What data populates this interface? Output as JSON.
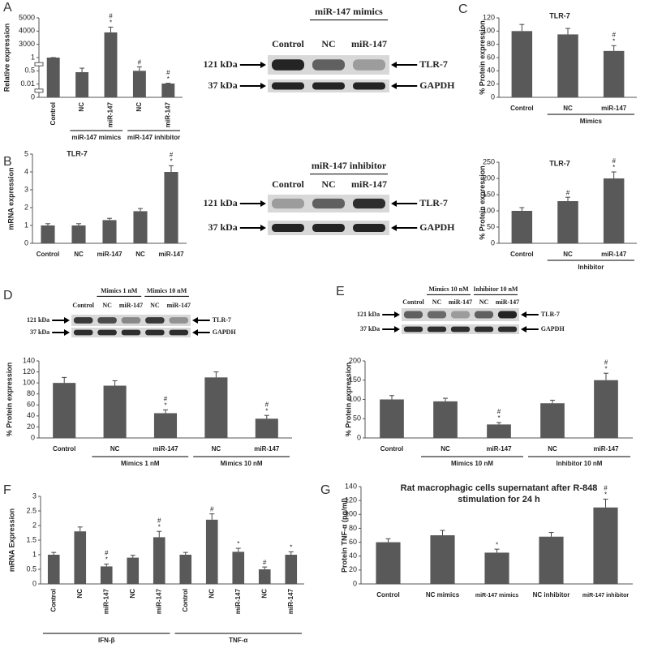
{
  "panels": [
    "A",
    "B",
    "C",
    "D",
    "E",
    "F",
    "G"
  ],
  "blots": [
    {
      "headers": [
        {
          "label": "miR-147 mimics",
          "first": 1,
          "count": 2
        }
      ],
      "lanes": [
        "Control",
        "NC",
        "miR-147"
      ],
      "bands": [
        {
          "size": "121 kDa",
          "protein": "TLR-7"
        },
        {
          "size": "37 kDa",
          "protein": "GAPDH"
        }
      ]
    },
    {
      "headers": [
        {
          "label": "miR-147 inhibitor",
          "first": 1,
          "count": 2
        }
      ],
      "lanes": [
        "Control",
        "NC",
        "miR-147"
      ],
      "bands": [
        {
          "size": "121 kDa",
          "protein": "TLR-7"
        },
        {
          "size": "37 kDa",
          "protein": "GAPDH"
        }
      ]
    },
    {
      "headers": [
        {
          "label": "Mimics 1 nM",
          "first": 1,
          "count": 2
        },
        {
          "label": "Mimics 10 nM",
          "first": 3,
          "count": 2
        }
      ],
      "lanes": [
        "Control",
        "NC",
        "miR-147",
        "NC",
        "miR-147"
      ],
      "bands": [
        {
          "size": "121 kDa",
          "protein": "TLR-7"
        },
        {
          "size": "37 kDa",
          "protein": "GAPDH"
        }
      ]
    },
    {
      "headers": [
        {
          "label": "Mimics 10 nM",
          "first": 1,
          "count": 2
        },
        {
          "label": "Inhibitor 10 nM",
          "first": 3,
          "count": 2
        }
      ],
      "lanes": [
        "Control",
        "NC",
        "miR-147",
        "NC",
        "miR-147"
      ],
      "bands": [
        {
          "size": "121 kDa",
          "protein": "TLR-7"
        },
        {
          "size": "37 kDa",
          "protein": "GAPDH"
        }
      ]
    }
  ],
  "chart_data": [
    {
      "type": "bar",
      "y_label": "Relative expression",
      "scale": "piecewise",
      "color": "#595959",
      "categories": [
        "Control",
        "NC",
        "miR-147",
        "NC",
        "miR-147"
      ],
      "values": [
        1,
        0.45,
        3900,
        0.5,
        0.03
      ],
      "errors": [
        0.3,
        0.15,
        400,
        0.15,
        0.01
      ],
      "annotations": [
        [],
        [],
        [
          "#",
          "*"
        ],
        [
          "#"
        ],
        [
          "#",
          "*"
        ]
      ],
      "groups": [
        {
          "label": "miR-147 mimics",
          "first": 1,
          "count": 2
        },
        {
          "label": "miR-147 inhibitor",
          "first": 3,
          "count": 2
        }
      ],
      "ylim": [
        0,
        5000
      ],
      "yticks": [
        0,
        0.01,
        0.5,
        1,
        3000,
        4000,
        5000
      ]
    },
    {
      "type": "bar",
      "title": "TLR-7",
      "y_label": "% Protein expression",
      "color": "#595959",
      "categories": [
        "Control",
        "NC",
        "miR-147"
      ],
      "values": [
        100,
        95,
        70
      ],
      "errors": [
        10,
        9,
        8
      ],
      "annotations": [
        [],
        [],
        [
          "#",
          "*"
        ]
      ],
      "groups": [
        {
          "label": "Mimics",
          "first": 1,
          "count": 2
        }
      ],
      "ylim": [
        0,
        120
      ],
      "yticks": [
        0,
        20,
        40,
        60,
        80,
        100,
        120
      ]
    },
    {
      "type": "bar",
      "title": "TLR-7",
      "y_label": "mRNA expression",
      "color": "#595959",
      "categories": [
        "Control",
        "NC",
        "miR-147",
        "NC",
        "miR-147"
      ],
      "values": [
        1,
        1,
        1.3,
        1.8,
        4
      ],
      "errors": [
        0.1,
        0.1,
        0.1,
        0.15,
        0.35
      ],
      "annotations": [
        [],
        [],
        [],
        [],
        [
          "#",
          "*"
        ]
      ],
      "groups": [],
      "ylim": [
        0,
        5
      ],
      "yticks": [
        0,
        1,
        2,
        3,
        4,
        5
      ]
    },
    {
      "type": "bar",
      "title": "TLR-7",
      "y_label": "% Protein expression",
      "color": "#595959",
      "categories": [
        "Control",
        "NC",
        "miR-147"
      ],
      "values": [
        100,
        130,
        200
      ],
      "errors": [
        10,
        12,
        20
      ],
      "annotations": [
        [],
        [
          "#"
        ],
        [
          "#",
          "*"
        ]
      ],
      "groups": [
        {
          "label": "Inhibitor",
          "first": 1,
          "count": 2
        }
      ],
      "ylim": [
        0,
        250
      ],
      "yticks": [
        0,
        50,
        100,
        150,
        200,
        250
      ]
    },
    {
      "type": "bar",
      "y_label": "% Protein expression",
      "color": "#595959",
      "categories": [
        "Control",
        "NC",
        "miR-147",
        "NC",
        "miR-147"
      ],
      "values": [
        100,
        95,
        45,
        110,
        35
      ],
      "errors": [
        10,
        9,
        6,
        10,
        6
      ],
      "annotations": [
        [],
        [],
        [
          "#",
          "*"
        ],
        [],
        [
          "#",
          "*"
        ]
      ],
      "groups": [
        {
          "label": "Mimics 1 nM",
          "first": 1,
          "count": 2
        },
        {
          "label": "Mimics 10 nM",
          "first": 3,
          "count": 2
        }
      ],
      "ylim": [
        0,
        140
      ],
      "yticks": [
        0,
        20,
        40,
        60,
        80,
        100,
        120,
        140
      ]
    },
    {
      "type": "bar",
      "y_label": "% Protein expression",
      "color": "#595959",
      "categories": [
        "Control",
        "NC",
        "miR-147",
        "NC",
        "miR-147"
      ],
      "values": [
        100,
        95,
        35,
        90,
        150
      ],
      "errors": [
        10,
        8,
        5,
        8,
        18
      ],
      "annotations": [
        [],
        [],
        [
          "#",
          "*"
        ],
        [],
        [
          "#",
          "*"
        ]
      ],
      "groups": [
        {
          "label": "Mimics 10 nM",
          "first": 1,
          "count": 2
        },
        {
          "label": "Inhibitor 10 nM",
          "first": 3,
          "count": 2
        }
      ],
      "ylim": [
        0,
        200
      ],
      "yticks": [
        0,
        50,
        100,
        150,
        200
      ]
    },
    {
      "type": "bar",
      "y_label": "mRNA Expression",
      "color": "#595959",
      "categories": [
        "Control",
        "NC",
        "miR-147",
        "NC",
        "miR-147",
        "Control",
        "NC",
        "miR-147",
        "NC",
        "miR-147"
      ],
      "values": [
        1,
        1.8,
        0.6,
        0.9,
        1.6,
        1,
        2.2,
        1.1,
        0.5,
        1
      ],
      "errors": [
        0.08,
        0.15,
        0.08,
        0.08,
        0.2,
        0.08,
        0.2,
        0.12,
        0.08,
        0.1
      ],
      "annotations": [
        [],
        [],
        [
          "#",
          "*"
        ],
        [],
        [
          "#",
          "*"
        ],
        [],
        [
          "#"
        ],
        [
          "*"
        ],
        [
          "#"
        ],
        [
          "*"
        ]
      ],
      "groups": [
        {
          "label": "IFN-β",
          "first": 0,
          "count": 5
        },
        {
          "label": "TNF-α",
          "first": 5,
          "count": 5
        }
      ],
      "ylim": [
        0,
        3
      ],
      "yticks": [
        0,
        0.5,
        1,
        1.5,
        2,
        2.5,
        3
      ]
    },
    {
      "type": "bar",
      "title": [
        "Rat macrophagic cells supernatant after R-848",
        "stimulation for 24 h"
      ],
      "y_label": "Protein TNF-α (pg/ml)",
      "color": "#595959",
      "categories": [
        "Control",
        "NC mimics",
        "miR-147 mimics",
        "NC inhibitor",
        "miR-147 inhibitor"
      ],
      "values": [
        60,
        70,
        45,
        68,
        110
      ],
      "errors": [
        5,
        7,
        5,
        6,
        12
      ],
      "annotations": [
        [],
        [],
        [
          "*"
        ],
        [],
        [
          "#",
          "*"
        ]
      ],
      "groups": [],
      "ylim": [
        0,
        140
      ],
      "yticks": [
        0,
        20,
        40,
        60,
        80,
        100,
        120,
        140
      ]
    }
  ]
}
